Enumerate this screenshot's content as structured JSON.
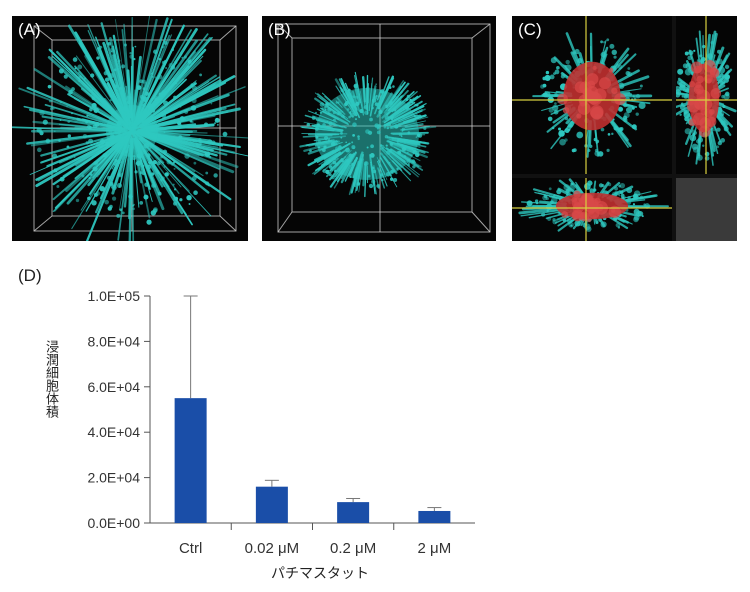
{
  "panels": {
    "a": {
      "label": "(A)"
    },
    "b": {
      "label": "(B)"
    },
    "c": {
      "label": "(C)"
    },
    "d": {
      "label": "(D)"
    }
  },
  "colors": {
    "cell": "#2ec8c0",
    "red": "#c03030",
    "crosshair": "#d8d040",
    "grid": "#d8d8d8",
    "bar": "#1a4ea8"
  },
  "chart_data": {
    "type": "bar",
    "categories": [
      "Ctrl",
      "0.02 μM",
      "0.2 μM",
      "2 μM"
    ],
    "values": [
      55000,
      16000,
      9200,
      5300
    ],
    "errors": [
      45000,
      2800,
      1600,
      1500
    ],
    "xlabel": "パチマスタット",
    "ylabel": "浸潤細胞体積",
    "ylim": [
      0,
      100000
    ],
    "yticks": [
      "0.0E+00",
      "2.0E+04",
      "4.0E+04",
      "6.0E+04",
      "8.0E+04",
      "1.0E+05"
    ],
    "grid": false
  }
}
